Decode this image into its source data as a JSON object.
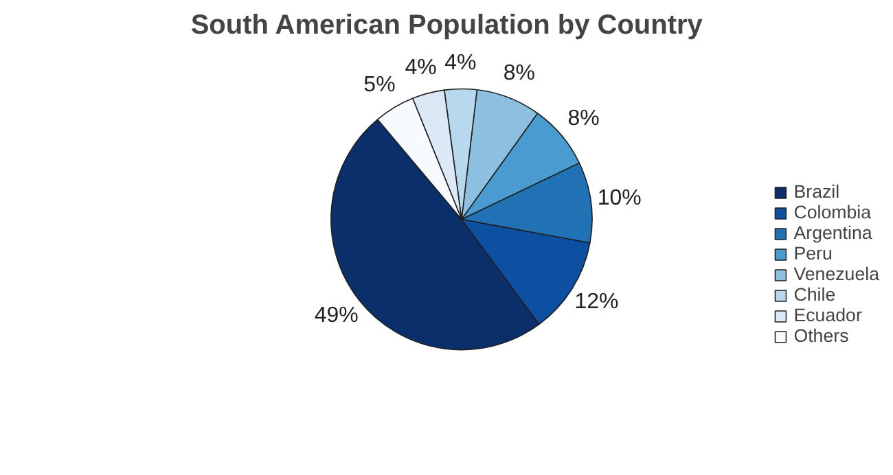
{
  "chart_data": {
    "type": "pie",
    "title": "South American Population by Country",
    "categories": [
      "Brazil",
      "Colombia",
      "Argentina",
      "Peru",
      "Venezuela",
      "Chile",
      "Ecuador",
      "Others"
    ],
    "values": [
      49,
      12,
      10,
      8,
      8,
      4,
      4,
      5
    ],
    "value_labels": [
      "49%",
      "12%",
      "10%",
      "8%",
      "8%",
      "4%",
      "4%",
      "5%"
    ],
    "colors": [
      "#0b2f6b",
      "#0d4fa0",
      "#2171b5",
      "#4a9bd0",
      "#8dc0e0",
      "#b8d8ee",
      "#dbe9f6",
      "#f7fbff"
    ],
    "legend": "right"
  }
}
